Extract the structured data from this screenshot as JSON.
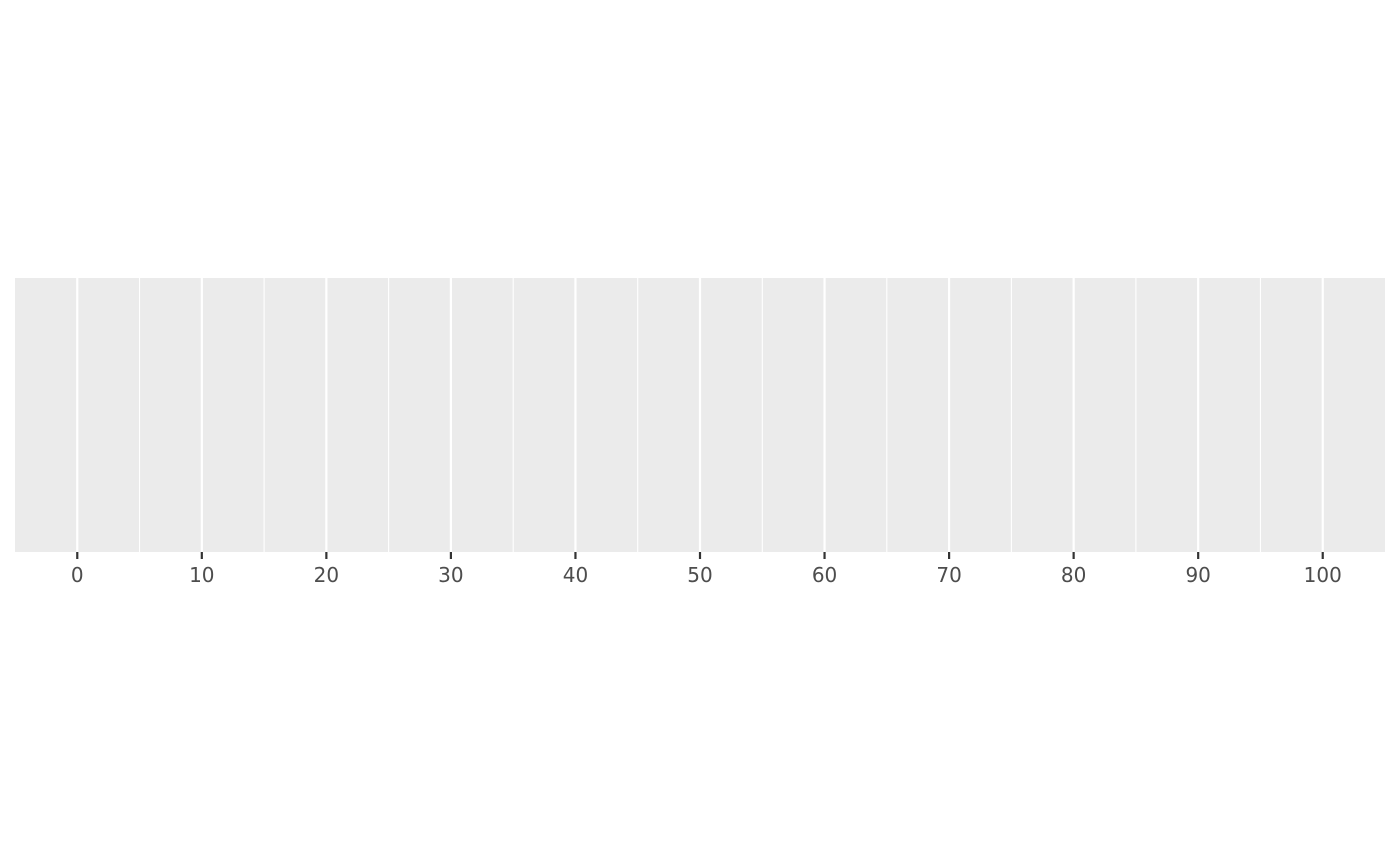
{
  "chart_data": {
    "type": "scatter",
    "title": "",
    "xlabel": "",
    "ylabel": "",
    "xlim": [
      -5,
      105
    ],
    "x_ticks": [
      0,
      10,
      20,
      30,
      40,
      50,
      60,
      70,
      80,
      90,
      100
    ],
    "x_tick_labels": [
      "0",
      "10",
      "20",
      "30",
      "40",
      "50",
      "60",
      "70",
      "80",
      "90",
      "100"
    ],
    "x_minor_ticks": [
      -5,
      5,
      15,
      25,
      35,
      45,
      55,
      65,
      75,
      85,
      95
    ],
    "y_axis_shown": false,
    "grid": true,
    "series": [],
    "colors": {
      "panel_background": "#ebebeb",
      "gridline": "#ffffff",
      "tick_mark": "#333333",
      "tick_label": "#4d4d4d"
    }
  }
}
